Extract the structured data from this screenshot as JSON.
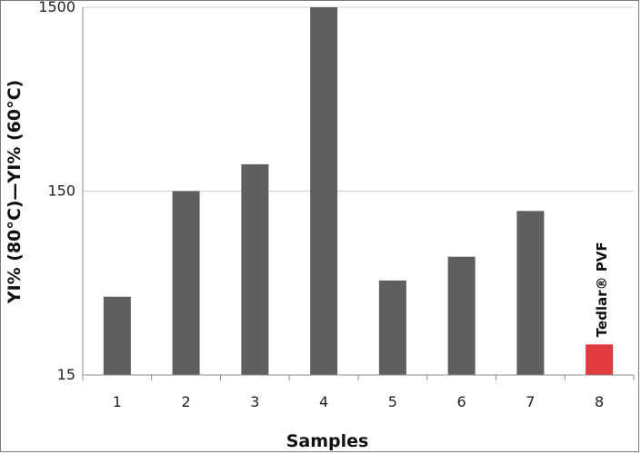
{
  "chart_data": {
    "type": "bar",
    "title": "",
    "xlabel": "Samples",
    "ylabel": "YI% (80°C)—YI% (60°C)",
    "yscale": "log",
    "ylim": [
      15,
      1500
    ],
    "yticks": [
      "15",
      "150",
      "1500"
    ],
    "grid": true,
    "categories": [
      "1",
      "2",
      "3",
      "4",
      "5",
      "6",
      "7",
      "8"
    ],
    "values": [
      40,
      150,
      210,
      1500,
      49,
      66,
      117,
      22
    ],
    "bar_colors": [
      "#5f5f5f",
      "#5f5f5f",
      "#5f5f5f",
      "#5f5f5f",
      "#5f5f5f",
      "#5f5f5f",
      "#5f5f5f",
      "#e23b3f"
    ],
    "annotation": {
      "category": "8",
      "text": "Tedlar® PVF"
    }
  }
}
